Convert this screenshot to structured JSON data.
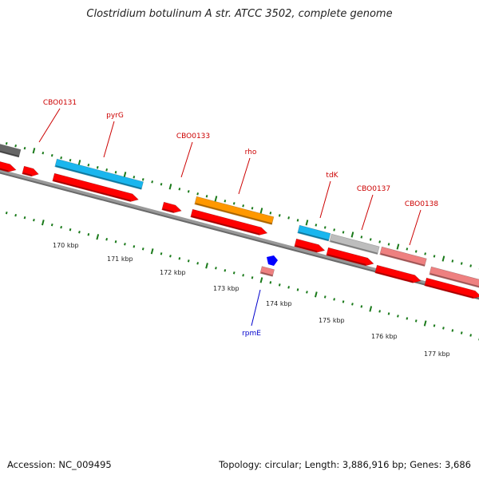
{
  "title": "Clostridium botulinum A str. ATCC 3502, complete genome",
  "footer": {
    "accession": "Accession: NC_009495",
    "summary": "Topology: circular; Length: 3,886,916 bp; Genes: 3,686"
  },
  "colors": {
    "backbone": "#888888",
    "cds_red": "#ff0000",
    "cds_cyan": "#19b6ee",
    "cds_orange": "#ff9800",
    "cds_pink": "#ee8080",
    "cds_grey": "#bdbdbd",
    "cds_dark": "#666666",
    "rna_blue": "#0000ff",
    "tick_green": "#1a7a1a",
    "label_red": "#cc0000",
    "label_blue": "#0000cc"
  },
  "scale_labels": [
    "170 kbp",
    "171 kbp",
    "172 kbp",
    "173 kbp",
    "174 kbp",
    "175 kbp",
    "176 kbp",
    "177 kbp"
  ],
  "gene_labels": [
    {
      "name": "CBO0131",
      "color": "label_red"
    },
    {
      "name": "pyrG",
      "color": "label_red"
    },
    {
      "name": "CBO0133",
      "color": "label_red"
    },
    {
      "name": "rho",
      "color": "label_red"
    },
    {
      "name": "tdK",
      "color": "label_red"
    },
    {
      "name": "CBO0137",
      "color": "label_red"
    },
    {
      "name": "CBO0138",
      "color": "label_red"
    },
    {
      "name": "rpmE",
      "color": "label_blue"
    }
  ]
}
